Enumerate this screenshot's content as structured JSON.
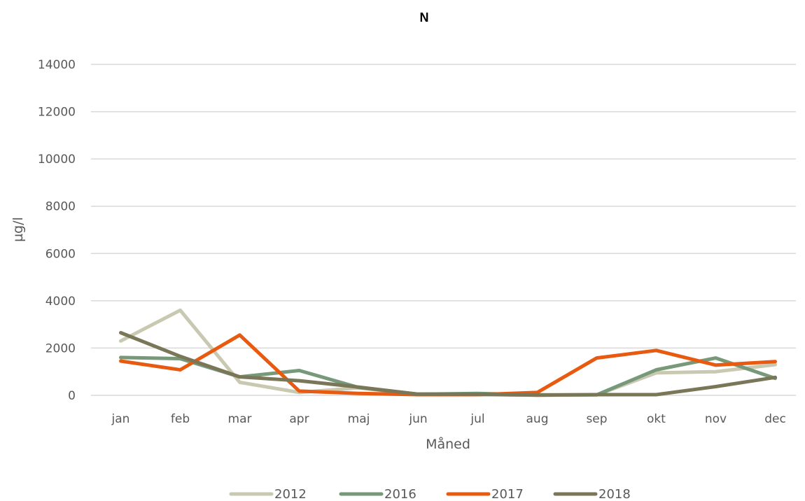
{
  "chart_data": {
    "type": "line",
    "title": "N",
    "xlabel": "Måned",
    "ylabel": "µg/l",
    "ylim": [
      0,
      14000
    ],
    "yticks": [
      0,
      2000,
      4000,
      6000,
      8000,
      10000,
      12000,
      14000
    ],
    "grid": true,
    "legend_position": "bottom",
    "categories": [
      "jan",
      "feb",
      "mar",
      "apr",
      "maj",
      "jun",
      "jul",
      "aug",
      "sep",
      "okt",
      "nov",
      "dec"
    ],
    "series": [
      {
        "name": "2012",
        "color": "#c9c8b0",
        "values": [
          2300,
          3600,
          550,
          120,
          320,
          30,
          40,
          10,
          20,
          950,
          1000,
          1300
        ]
      },
      {
        "name": "2016",
        "color": "#77997a",
        "values": [
          1600,
          1550,
          780,
          1050,
          330,
          50,
          80,
          20,
          20,
          1080,
          1580,
          720
        ]
      },
      {
        "name": "2017",
        "color": "#e85a0f",
        "values": [
          1450,
          1080,
          2550,
          180,
          80,
          30,
          30,
          120,
          1580,
          1900,
          1280,
          1430
        ]
      },
      {
        "name": "2018",
        "color": "#7a7658",
        "values": [
          2650,
          1650,
          780,
          620,
          350,
          50,
          40,
          10,
          30,
          30,
          370,
          760
        ]
      }
    ]
  }
}
